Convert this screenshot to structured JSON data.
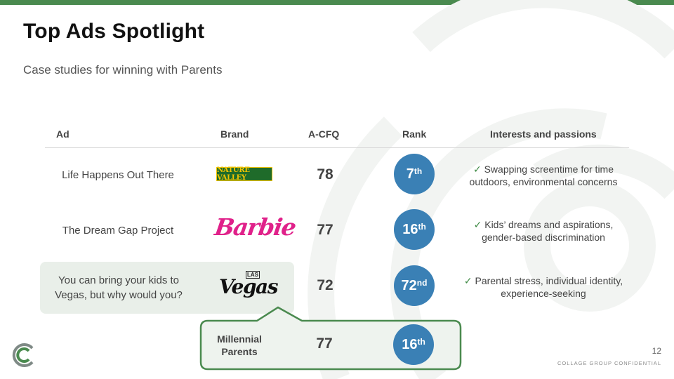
{
  "slide": {
    "title": "Top Ads Spotlight",
    "subtitle": "Case studies for winning with Parents",
    "page_number": "12",
    "confidential": "COLLAGE GROUP CONFIDENTIAL"
  },
  "table": {
    "headers": [
      "Ad",
      "Brand",
      "A-CFQ",
      "Rank",
      "Interests and passions"
    ],
    "rows": [
      {
        "ad": "Life Happens Out There",
        "brand": "NATURE VALLEY",
        "cfq": "78",
        "rank_num": "7",
        "rank_suffix": "th",
        "check": "✓",
        "interests": "Swapping screentime for time outdoors, environmental concerns"
      },
      {
        "ad": "The Dream Gap Project",
        "brand": "Barbie",
        "cfq": "77",
        "rank_num": "16",
        "rank_suffix": "th",
        "check": "✓",
        "interests": "Kids’ dreams and aspirations, gender-based discrimination"
      },
      {
        "ad": "You can bring your kids to Vegas, but why would you?",
        "brand": "Vegas",
        "brand_top": "LAS",
        "cfq": "72",
        "rank_num": "72",
        "rank_suffix": "nd",
        "check": "✓",
        "interests": "Parental stress, individual identity, experience-seeking"
      }
    ]
  },
  "callout": {
    "label": "Millennial Parents",
    "cfq": "77",
    "rank_num": "16",
    "rank_suffix": "th"
  },
  "colors": {
    "accent_green": "#4a8a4f",
    "rank_blue": "#3a80b5",
    "highlight": "#e9efe9",
    "barbie_pink": "#e0218a",
    "nature_valley_green": "#1f6b2a",
    "nature_valley_yellow": "#f2c400"
  }
}
